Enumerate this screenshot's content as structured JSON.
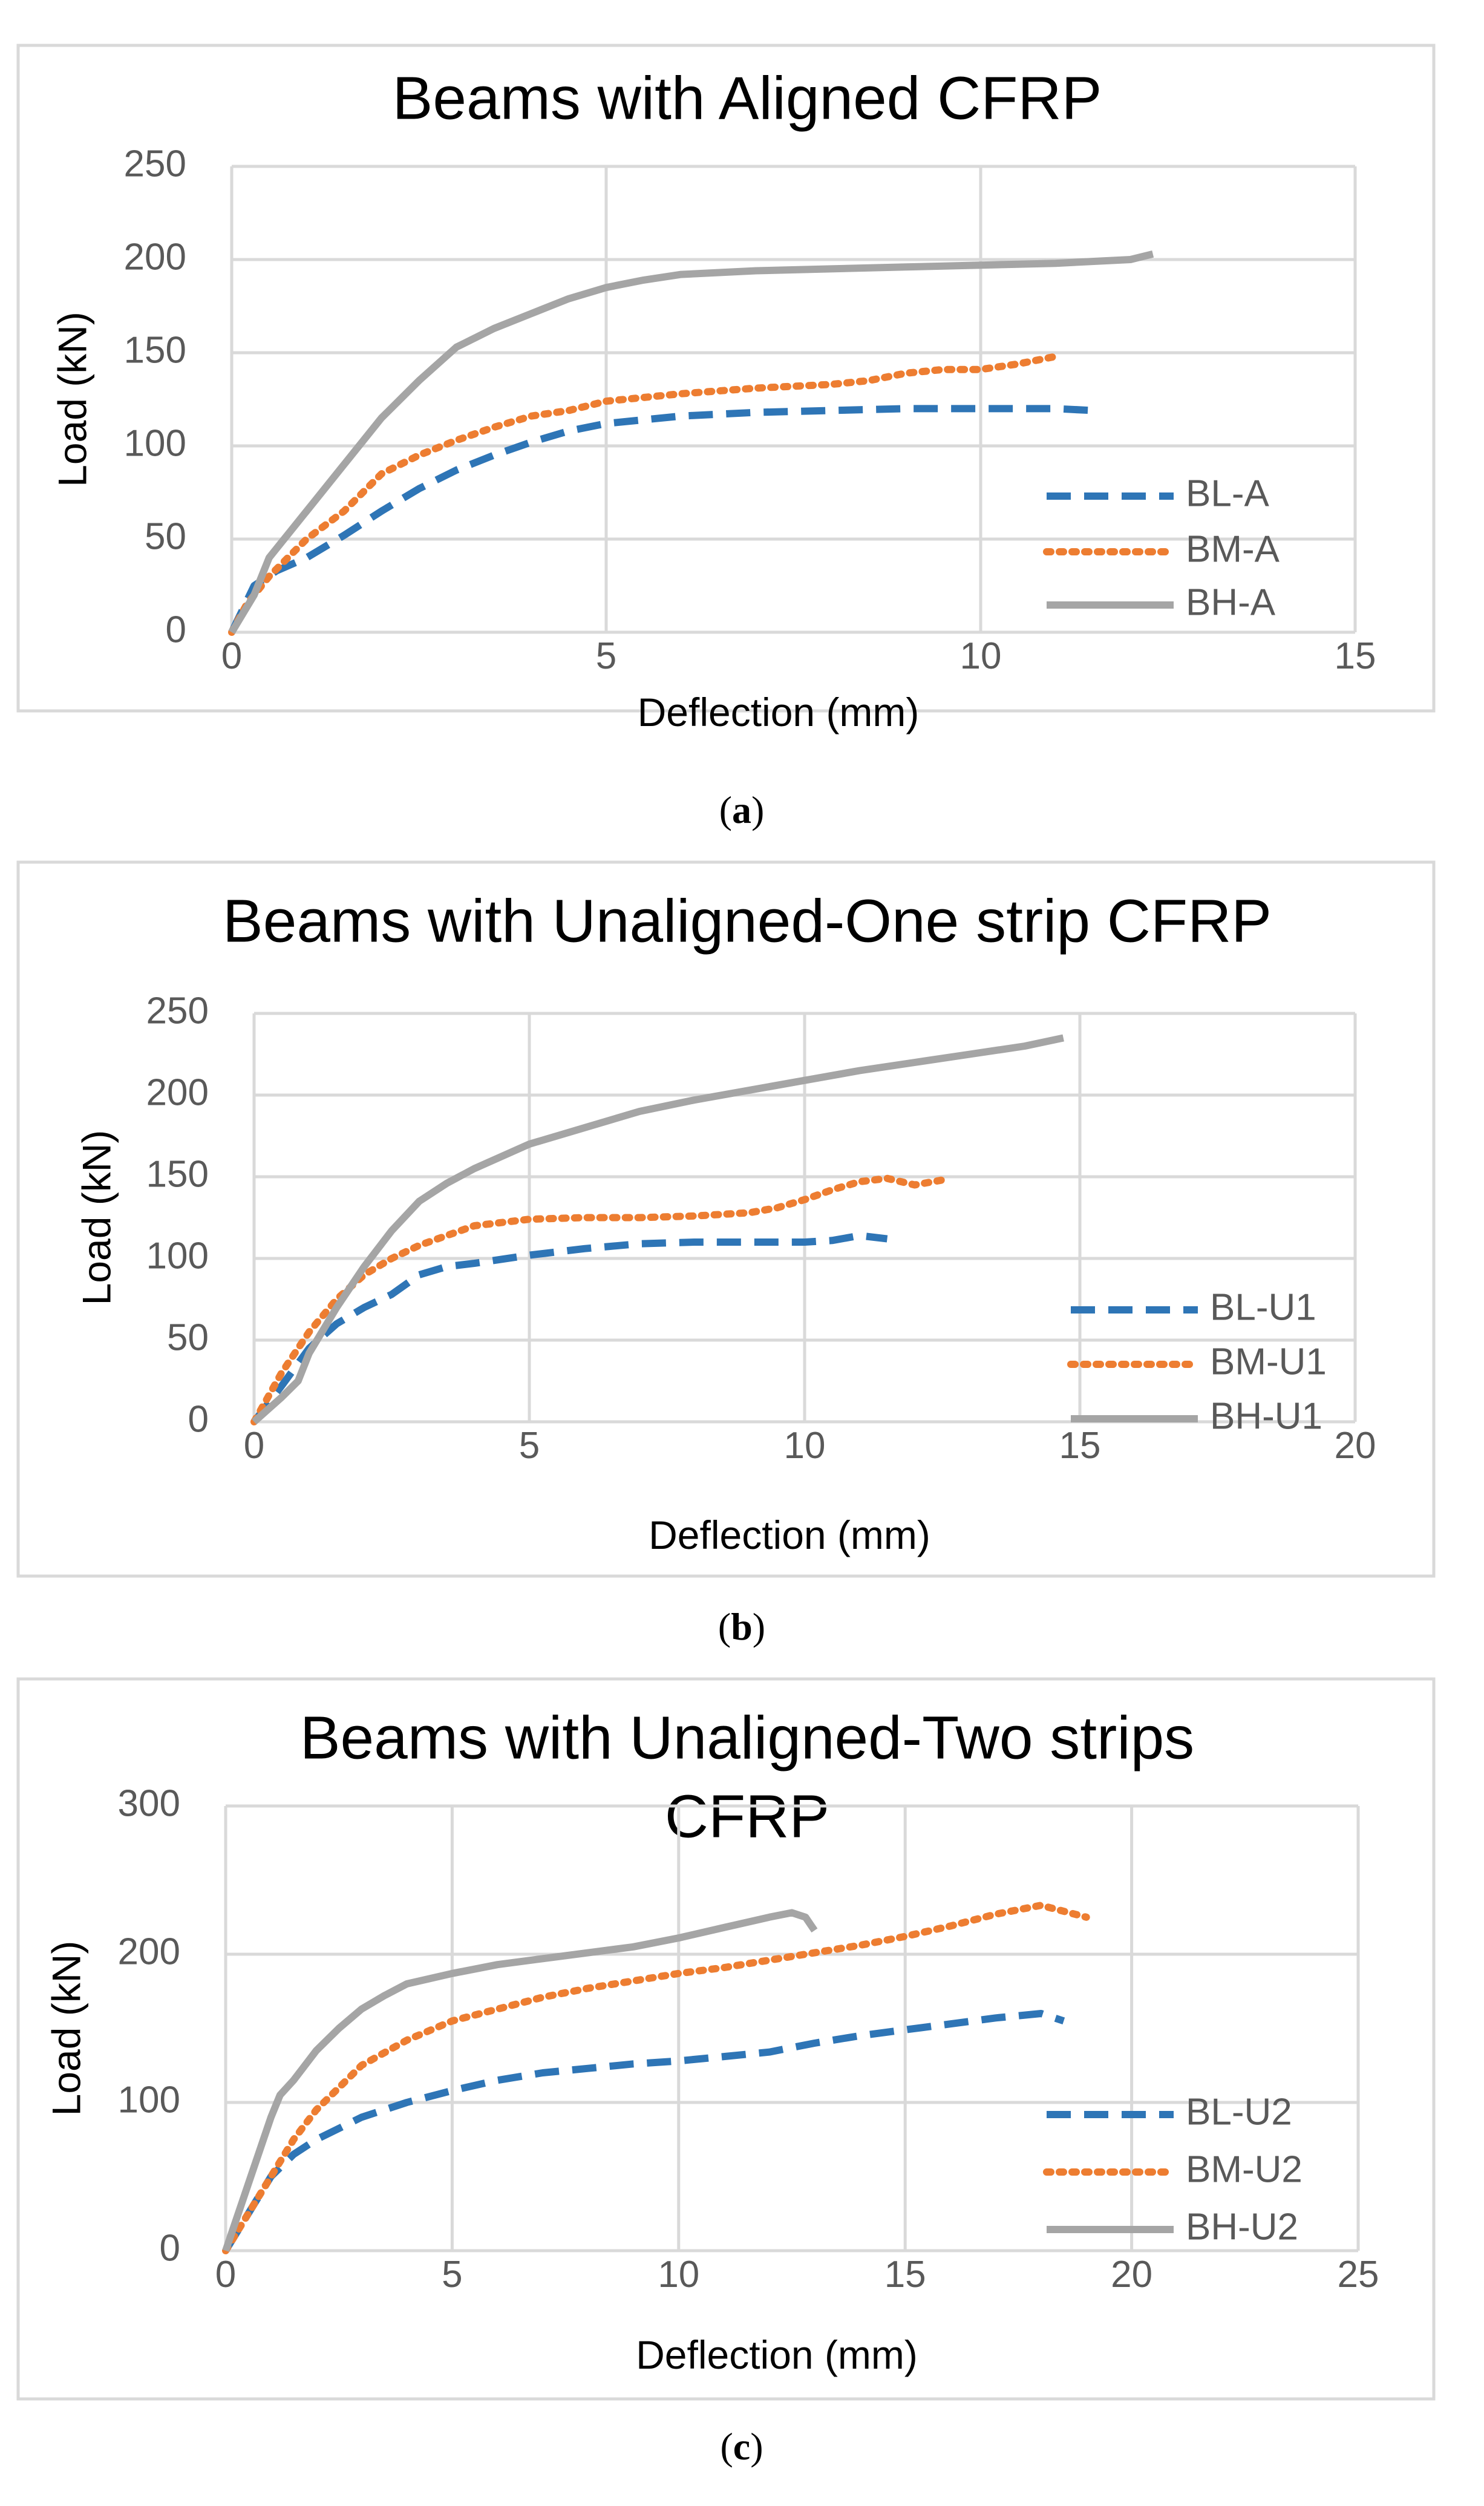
{
  "chart_data": [
    {
      "type": "line",
      "title": [
        "Beams with Aligned CFRP"
      ],
      "xlabel": "Deflection (mm)",
      "ylabel": "Load (kN)",
      "xlim": [
        0,
        15
      ],
      "ylim": [
        0,
        250
      ],
      "xticks": [
        0,
        5,
        10,
        15
      ],
      "yticks": [
        0,
        50,
        100,
        150,
        200,
        250
      ],
      "caption_letter": "a",
      "legend": "right",
      "series": [
        {
          "name": "BL-A",
          "color": "#2e75b6",
          "style": "dashed",
          "x": [
            0,
            0.3,
            0.6,
            1.0,
            1.5,
            2.0,
            2.5,
            3.0,
            3.5,
            4.0,
            4.5,
            5.0,
            6.0,
            7.0,
            8.0,
            9.0,
            10.0,
            11.0,
            11.5
          ],
          "y": [
            0,
            25,
            33,
            40,
            52,
            65,
            77,
            87,
            95,
            102,
            108,
            112,
            116,
            118,
            119,
            120,
            120,
            120,
            119
          ]
        },
        {
          "name": "BM-A",
          "color": "#ed7d31",
          "style": "dotted",
          "x": [
            0,
            0.2,
            0.5,
            1.0,
            1.5,
            2.0,
            2.5,
            3.0,
            3.5,
            4.0,
            4.5,
            5.0,
            6.0,
            7.0,
            8.0,
            8.5,
            9.0,
            9.5,
            10.0,
            10.5,
            11.0
          ],
          "y": [
            0,
            15,
            30,
            50,
            65,
            85,
            95,
            103,
            110,
            116,
            119,
            124,
            128,
            131,
            133,
            135,
            139,
            141,
            141,
            144,
            148
          ]
        },
        {
          "name": "BH-A",
          "color": "#a5a5a5",
          "style": "solid",
          "x": [
            0,
            0.3,
            0.5,
            0.8,
            1.0,
            1.5,
            2.0,
            2.5,
            3.0,
            3.5,
            4.0,
            4.5,
            5.0,
            5.5,
            6.0,
            7.0,
            8.0,
            9.0,
            10.0,
            11.0,
            12.0,
            12.3
          ],
          "y": [
            0,
            20,
            40,
            55,
            65,
            90,
            115,
            135,
            153,
            163,
            171,
            179,
            185,
            189,
            192,
            194,
            195,
            196,
            197,
            198,
            200,
            203
          ]
        }
      ]
    },
    {
      "type": "line",
      "title": [
        "Beams with Unaligned-One strip CFRP"
      ],
      "xlabel": "Deflection (mm)",
      "ylabel": "Load (kN)",
      "xlim": [
        0,
        20
      ],
      "ylim": [
        0,
        250
      ],
      "xticks": [
        0,
        5,
        10,
        15,
        20
      ],
      "yticks": [
        0,
        50,
        100,
        150,
        200,
        250
      ],
      "caption_letter": "b",
      "legend": "right",
      "series": [
        {
          "name": "BL-U1",
          "color": "#2e75b6",
          "style": "dashed",
          "x": [
            0,
            0.5,
            1.0,
            1.5,
            2.0,
            2.5,
            3.0,
            3.5,
            4.0,
            5.0,
            6.0,
            7.0,
            8.0,
            9.0,
            10.0,
            10.5,
            11.0,
            11.5
          ],
          "y": [
            0,
            22,
            45,
            60,
            70,
            78,
            90,
            95,
            97,
            102,
            106,
            109,
            110,
            110,
            110,
            111,
            114,
            112
          ]
        },
        {
          "name": "BM-U1",
          "color": "#ed7d31",
          "style": "dotted",
          "x": [
            0,
            0.5,
            1.0,
            1.5,
            2.0,
            2.5,
            3.0,
            3.5,
            4.0,
            5.0,
            6.0,
            7.0,
            8.0,
            9.0,
            9.5,
            10.0,
            10.5,
            11.0,
            11.5,
            12.0,
            12.5
          ],
          "y": [
            0,
            30,
            55,
            75,
            90,
            100,
            108,
            114,
            120,
            124,
            125,
            125,
            126,
            128,
            131,
            136,
            142,
            147,
            149,
            145,
            148
          ]
        },
        {
          "name": "BH-U1",
          "color": "#a5a5a5",
          "style": "solid",
          "x": [
            0,
            0.5,
            0.8,
            1.0,
            1.5,
            2.0,
            2.5,
            3.0,
            3.5,
            4.0,
            5.0,
            6.0,
            7.0,
            8.0,
            9.0,
            10.0,
            11.0,
            12.0,
            13.0,
            14.0,
            14.7
          ],
          "y": [
            0,
            15,
            25,
            42,
            70,
            95,
            117,
            135,
            146,
            155,
            170,
            180,
            190,
            197,
            203,
            209,
            215,
            220,
            225,
            230,
            235
          ]
        }
      ]
    },
    {
      "type": "line",
      "title": [
        "Beams with Unaligned-Two strips",
        "CFRP"
      ],
      "xlabel": "Deflection (mm)",
      "ylabel": "Load (kN)",
      "xlim": [
        0,
        25
      ],
      "ylim": [
        0,
        300
      ],
      "xticks": [
        0,
        5,
        10,
        15,
        20,
        25
      ],
      "yticks": [
        0,
        100,
        200,
        300
      ],
      "caption_letter": "c",
      "legend": "right",
      "series": [
        {
          "name": "BL-U2",
          "color": "#2e75b6",
          "style": "dashed",
          "x": [
            0,
            0.5,
            1.0,
            1.5,
            2.0,
            3.0,
            4.0,
            5.0,
            6.0,
            7.0,
            8.0,
            9.0,
            10.0,
            11.0,
            12.0,
            13.0,
            14.0,
            15.0,
            16.0,
            17.0,
            18.0,
            18.5
          ],
          "y": [
            0,
            25,
            50,
            65,
            75,
            90,
            100,
            108,
            115,
            120,
            123,
            126,
            128,
            131,
            134,
            140,
            145,
            149,
            153,
            157,
            160,
            155
          ]
        },
        {
          "name": "BM-U2",
          "color": "#ed7d31",
          "style": "dotted",
          "x": [
            0,
            0.5,
            1.0,
            1.5,
            2.0,
            2.5,
            3.0,
            4.0,
            5.0,
            6.0,
            7.0,
            8.0,
            9.0,
            10.0,
            11.0,
            12.0,
            13.0,
            14.0,
            15.0,
            16.0,
            17.0,
            18.0,
            19.0
          ],
          "y": [
            0,
            25,
            50,
            75,
            95,
            110,
            125,
            142,
            155,
            163,
            171,
            177,
            182,
            187,
            191,
            196,
            201,
            206,
            212,
            219,
            227,
            233,
            225
          ]
        },
        {
          "name": "BH-U2",
          "color": "#a5a5a5",
          "style": "solid",
          "x": [
            0,
            0.5,
            1.0,
            1.2,
            1.5,
            2.0,
            2.5,
            3.0,
            3.5,
            4.0,
            5.0,
            6.0,
            7.0,
            8.0,
            9.0,
            10.0,
            11.0,
            12.0,
            12.5,
            12.8,
            13.0
          ],
          "y": [
            0,
            45,
            90,
            105,
            115,
            135,
            150,
            163,
            172,
            180,
            187,
            193,
            197,
            201,
            205,
            211,
            218,
            225,
            228,
            225,
            216
          ]
        }
      ]
    }
  ]
}
